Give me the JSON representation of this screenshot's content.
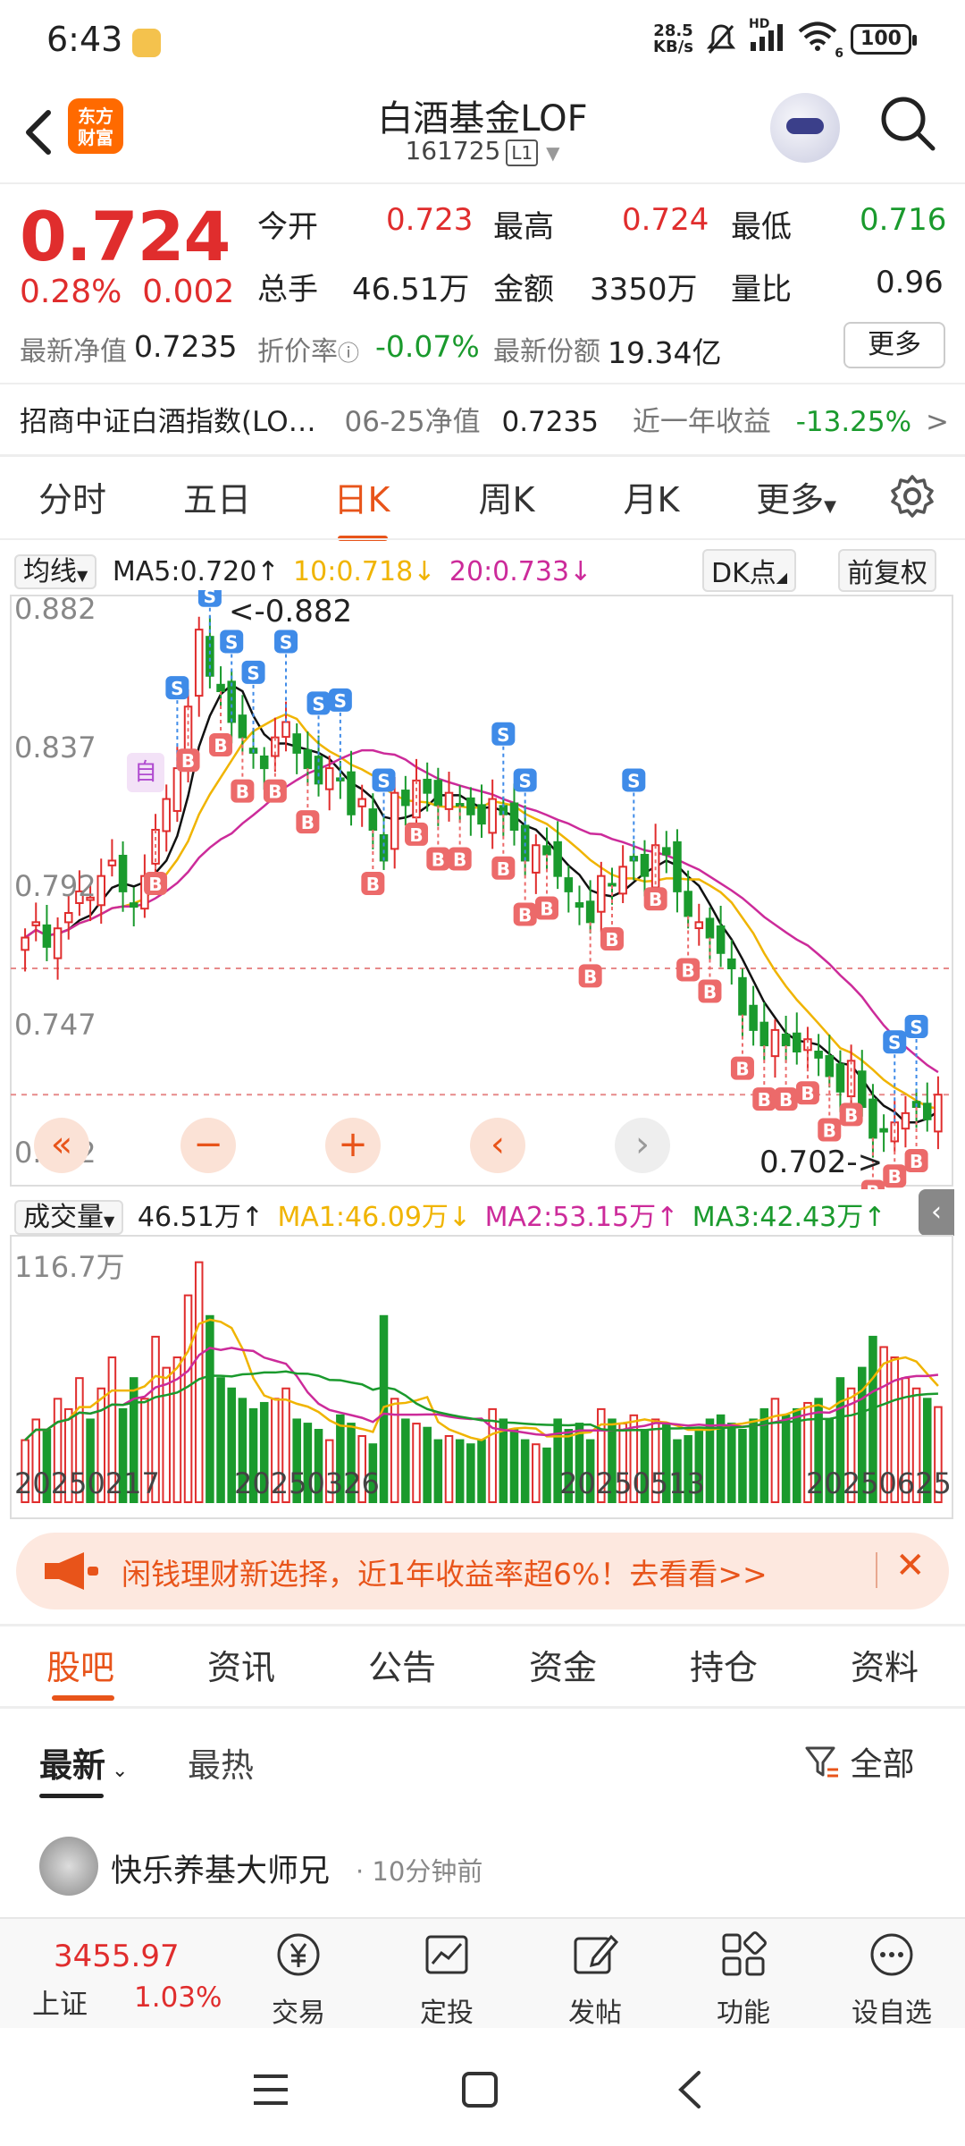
{
  "status_bar": {
    "time": "6:43",
    "net_speed_top": "28.5",
    "net_speed_unit": "KB/s",
    "signal": "HD",
    "wifi_extra": "6",
    "battery": "100"
  },
  "header": {
    "back_icon": "back-arrow-icon",
    "logo_line1": "东方",
    "logo_line2": "财富",
    "title": "白酒基金LOF",
    "code": "161725",
    "level": "L1",
    "search_icon": "search-icon"
  },
  "quote": {
    "price": "0.724",
    "change_pct": "0.28%",
    "change_abs": "0.002",
    "open_label": "今开",
    "open": "0.723",
    "high_label": "最高",
    "high": "0.724",
    "low_label": "最低",
    "low": "0.716",
    "volume_label": "总手",
    "volume": "46.51万",
    "amount_label": "金额",
    "amount": "3350万",
    "ratio_label": "量比",
    "ratio": "0.96",
    "nav_label": "最新净值",
    "nav": "0.7235",
    "discount_label": "折价率",
    "discount": "-0.07%",
    "shares_label": "最新份额",
    "shares": "19.34亿",
    "more": "更多",
    "index_name": "招商中证白酒指数(LO…",
    "index_nav_label": "06-25净值",
    "index_nav": "0.7235",
    "year_label": "近一年收益",
    "year_return": "-13.25%",
    "arrow": ">"
  },
  "period_tabs": [
    "分时",
    "五日",
    "日K",
    "周K",
    "月K",
    "更多"
  ],
  "active_period": 2,
  "chart_header": {
    "ma_select": "均线",
    "ma5": "MA5:0.720",
    "ma10": "10:0.718",
    "ma20": "20:0.733",
    "dk": "DK点",
    "fq": "前复权"
  },
  "vol_header": {
    "select": "成交量",
    "vol": "46.51万",
    "ma1": "MA1:46.09万",
    "ma2": "MA2:53.15万",
    "ma3": "MA3:42.43万"
  },
  "colors": {
    "up": "#e02d2d",
    "down": "#1a9a2d",
    "accent": "#e8541a",
    "ma5": "#111111",
    "ma10": "#f0b400",
    "ma20": "#cc2b9a"
  },
  "chart_data": {
    "type": "candlestick",
    "y_axis_labels": [
      "0.882",
      "0.837",
      "0.792",
      "0.747",
      "0.702"
    ],
    "ylim": [
      0.702,
      0.882
    ],
    "high_marker": "<-0.882",
    "low_marker": "0.702->",
    "tag_self": "自",
    "buy_tag": "B",
    "sell_tag": "S",
    "x_tick_labels": [
      "20250217",
      "20250326",
      "20250513",
      "20250625"
    ],
    "volume_axis_label": "116.7万",
    "closes": [
      0.775,
      0.78,
      0.772,
      0.778,
      0.783,
      0.79,
      0.788,
      0.795,
      0.8,
      0.79,
      0.785,
      0.795,
      0.81,
      0.82,
      0.83,
      0.85,
      0.875,
      0.86,
      0.855,
      0.845,
      0.84,
      0.835,
      0.83,
      0.84,
      0.845,
      0.835,
      0.83,
      0.825,
      0.83,
      0.826,
      0.815,
      0.82,
      0.81,
      0.8,
      0.822,
      0.818,
      0.826,
      0.822,
      0.818,
      0.822,
      0.818,
      0.815,
      0.812,
      0.82,
      0.815,
      0.81,
      0.8,
      0.805,
      0.802,
      0.795,
      0.79,
      0.785,
      0.78,
      0.795,
      0.792,
      0.798,
      0.8,
      0.795,
      0.805,
      0.802,
      0.79,
      0.782,
      0.78,
      0.775,
      0.77,
      0.765,
      0.75,
      0.745,
      0.74,
      0.745,
      0.74,
      0.738,
      0.742,
      0.736,
      0.73,
      0.725,
      0.735,
      0.72,
      0.71,
      0.712,
      0.715,
      0.718,
      0.72,
      0.716,
      0.724
    ],
    "volumes": [
      30,
      40,
      35,
      50,
      45,
      60,
      40,
      55,
      70,
      45,
      60,
      50,
      80,
      65,
      70,
      100,
      116,
      90,
      60,
      55,
      50,
      45,
      48,
      50,
      55,
      40,
      38,
      35,
      30,
      42,
      38,
      32,
      28,
      90,
      50,
      40,
      38,
      36,
      30,
      32,
      30,
      28,
      30,
      45,
      40,
      35,
      30,
      28,
      26,
      40,
      35,
      38,
      30,
      45,
      40,
      38,
      42,
      35,
      40,
      38,
      30,
      32,
      35,
      40,
      42,
      38,
      35,
      40,
      45,
      50,
      42,
      45,
      48,
      50,
      40,
      60,
      55,
      65,
      80,
      75,
      70,
      60,
      55,
      50,
      46
    ]
  },
  "controls": [
    "«",
    "−",
    "+",
    "‹",
    "›"
  ],
  "promo": {
    "text": "闲钱理财新选择，近1年收益率超6%！去看看>>",
    "close": "✕"
  },
  "section_tabs": [
    "股吧",
    "资讯",
    "公告",
    "资金",
    "持仓",
    "资料"
  ],
  "active_section": 0,
  "feed": {
    "sort_latest": "最新",
    "sort_hot": "最热",
    "filter": "全部",
    "post_user": "快乐养基大师兄",
    "post_time": "· 10分钟前"
  },
  "bottom_bar": {
    "index_value": "3455.97",
    "index_name": "上证",
    "index_change": "1.03%",
    "items": [
      "交易",
      "定投",
      "发帖",
      "功能",
      "设自选"
    ]
  }
}
